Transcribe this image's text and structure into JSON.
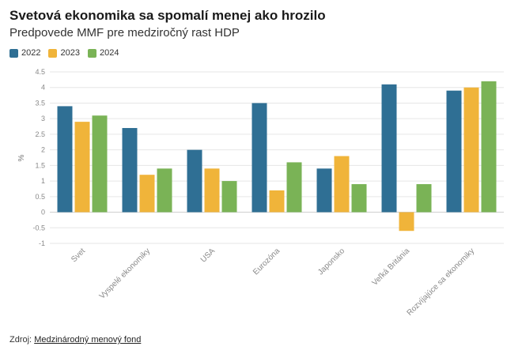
{
  "chart_data": {
    "type": "bar",
    "title": "Svetová ekonomika sa spomalí menej ako hrozilo",
    "subtitle": "Predpovede MMF pre medziročný rast HDP",
    "ylabel": "%",
    "xlabel": "",
    "ylim": [
      -1,
      4.5
    ],
    "yticks": [
      4.5,
      4,
      3.5,
      3,
      2.5,
      2,
      1.5,
      1,
      0.5,
      0,
      -0.5,
      -1
    ],
    "grid": true,
    "legend_position": "top-left",
    "categories": [
      "Svet",
      "Vyspelé ekonomiky",
      "USA",
      "Eurozóna",
      "Japonsko",
      "Veľká Británia",
      "Rozvíjajúce sa ekonomiky"
    ],
    "series": [
      {
        "name": "2022",
        "color": "#2f6f94",
        "values": [
          3.4,
          2.7,
          2.0,
          3.5,
          1.4,
          4.1,
          3.9
        ]
      },
      {
        "name": "2023",
        "color": "#f0b43a",
        "values": [
          2.9,
          1.2,
          1.4,
          0.7,
          1.8,
          -0.6,
          4.0
        ]
      },
      {
        "name": "2024",
        "color": "#7ab356",
        "values": [
          3.1,
          1.4,
          1.0,
          1.6,
          0.9,
          0.9,
          4.2
        ]
      }
    ]
  },
  "source": {
    "prefix": "Zdroj:",
    "link_text": "Medzinárodný menový fond"
  }
}
